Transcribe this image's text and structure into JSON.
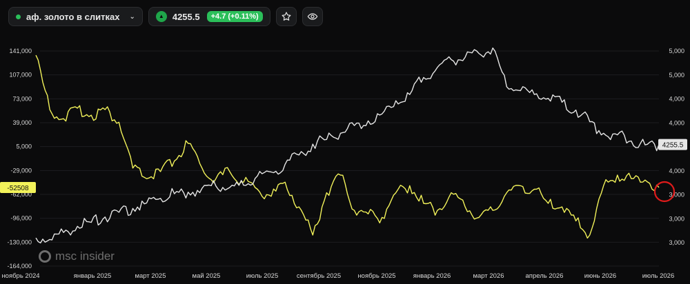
{
  "header": {
    "instrument_name": "аф. золото в слитках",
    "price": "4255.5",
    "change": "+4.7 (+0.11%)",
    "dot_color": "#2bbf5a"
  },
  "watermark": {
    "text": "msc insider"
  },
  "chart_data": {
    "type": "line",
    "left_axis_ticks": [
      "141,000",
      "107,000",
      "73,000",
      "39,000",
      "5,000",
      "-29,000",
      "-62,000",
      "-96,000",
      "-130,000",
      "-164,000"
    ],
    "right_axis_ticks": [
      "5,000",
      "5,000",
      "4,000",
      "4,000",
      "4,000",
      "4,000",
      "3,000",
      "3,000",
      "3,000"
    ],
    "x_ticks": [
      "ноябрь 2024",
      "январь 2025",
      "март 2025",
      "май 2025",
      "июль 2025",
      "сентябрь 2025",
      "ноябрь 2025",
      "январь 2026",
      "март 2026",
      "апрель 2026",
      "июнь 2026",
      "июль 2026"
    ],
    "left_ylim": [
      -164000,
      141000
    ],
    "right_ylim": [
      2900,
      5550
    ],
    "last_labels": {
      "left": "-52508",
      "right": "4255.5"
    },
    "series": [
      {
        "color": "#f2f25a",
        "axis": "left",
        "x": [
          0,
          2,
          4,
          6,
          8,
          10,
          12,
          14,
          16,
          18,
          20,
          22,
          24,
          26,
          28,
          30,
          32,
          34,
          36,
          38,
          40,
          42,
          44,
          46,
          48,
          50,
          52,
          54,
          56,
          58,
          60,
          62,
          64,
          66,
          68,
          70,
          72,
          74,
          76,
          78,
          80,
          82,
          84,
          86,
          88,
          90
        ],
        "values": [
          135000,
          58000,
          45000,
          60000,
          50000,
          58000,
          40000,
          -25000,
          -40000,
          -30000,
          -15000,
          10000,
          -25000,
          -40000,
          -30000,
          -45000,
          -55000,
          -65000,
          -45000,
          -80000,
          -120000,
          -60000,
          -35000,
          -85000,
          -90000,
          -95000,
          -60000,
          -50000,
          -75000,
          -85000,
          -60000,
          -80000,
          -95000,
          -85000,
          -60000,
          -50000,
          -55000,
          -75000,
          -80000,
          -100000,
          -120000,
          -50000,
          -35000,
          -40000,
          -42000,
          -52508
        ]
      },
      {
        "color": "#e6e6e6",
        "axis": "right",
        "x": [
          0,
          2,
          4,
          6,
          8,
          10,
          12,
          14,
          16,
          18,
          20,
          22,
          24,
          26,
          28,
          30,
          32,
          34,
          36,
          38,
          40,
          42,
          44,
          46,
          48,
          50,
          52,
          54,
          56,
          58,
          60,
          62,
          64,
          66,
          68,
          70,
          72,
          74,
          76,
          78,
          80,
          82,
          84,
          86,
          88,
          90
        ],
        "values": [
          3050,
          3030,
          3120,
          3200,
          3250,
          3320,
          3380,
          3430,
          3500,
          3560,
          3620,
          3640,
          3690,
          3720,
          3700,
          3730,
          3850,
          3900,
          4000,
          4120,
          4260,
          4320,
          4400,
          4500,
          4560,
          4650,
          4820,
          4900,
          5120,
          5250,
          5350,
          5380,
          5430,
          5500,
          5000,
          4950,
          4900,
          4850,
          4800,
          4700,
          4550,
          4400,
          4380,
          4300,
          4250,
          4255.5
        ]
      }
    ]
  }
}
